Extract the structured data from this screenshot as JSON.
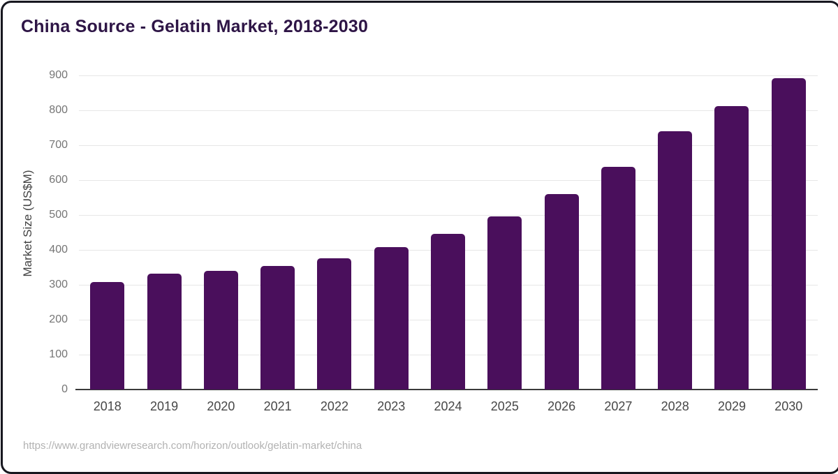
{
  "chart_data": {
    "type": "bar",
    "title": "China Source - Gelatin Market, 2018-2030",
    "categories": [
      "2018",
      "2019",
      "2020",
      "2021",
      "2022",
      "2023",
      "2024",
      "2025",
      "2026",
      "2027",
      "2028",
      "2029",
      "2030"
    ],
    "values": [
      308,
      333,
      341,
      355,
      377,
      408,
      446,
      497,
      561,
      639,
      741,
      812,
      893
    ],
    "xlabel": "",
    "ylabel": "Market Size (US$M)",
    "ylim": [
      0,
      950
    ],
    "yticks": [
      0,
      100,
      200,
      300,
      400,
      500,
      600,
      700,
      800,
      900
    ],
    "grid": true,
    "legend": false,
    "bar_color": "#4a0f5c"
  },
  "footer": {
    "source_url": "https://www.grandviewresearch.com/horizon/outlook/gelatin-market/china"
  },
  "colors": {
    "title": "#2e1546",
    "bar": "#4a0f5c",
    "axis_line": "#3a3a3a",
    "gridline": "#e7e7e7",
    "tick_label": "#757575",
    "axis_title": "#424242",
    "x_label": "#474747",
    "footer_text": "#b2b2b2",
    "frame": "#17171f"
  }
}
